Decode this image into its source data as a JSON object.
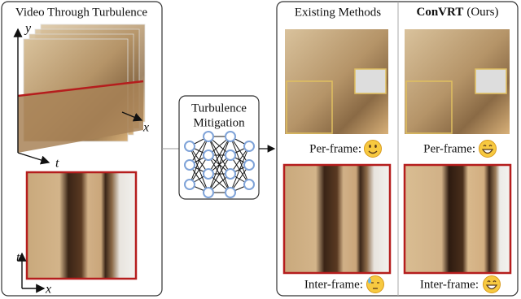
{
  "left_panel": {
    "title": "Video Through Turbulence",
    "axis_y": "y",
    "axis_x": "x",
    "axis_t": "t",
    "slice_axis_t": "t",
    "slice_axis_x": "x"
  },
  "network": {
    "label_lines": [
      "Turbulence",
      "Mitigation"
    ]
  },
  "right_panel": {
    "columns": [
      {
        "title": "Existing Methods",
        "per_frame": "Per-frame:",
        "inter_frame": "Inter-frame:"
      },
      {
        "title_bold": "ConVRT",
        "title_rest": "(Ours)",
        "per_frame": "Per-frame:",
        "inter_frame": "Inter-frame:"
      }
    ]
  }
}
